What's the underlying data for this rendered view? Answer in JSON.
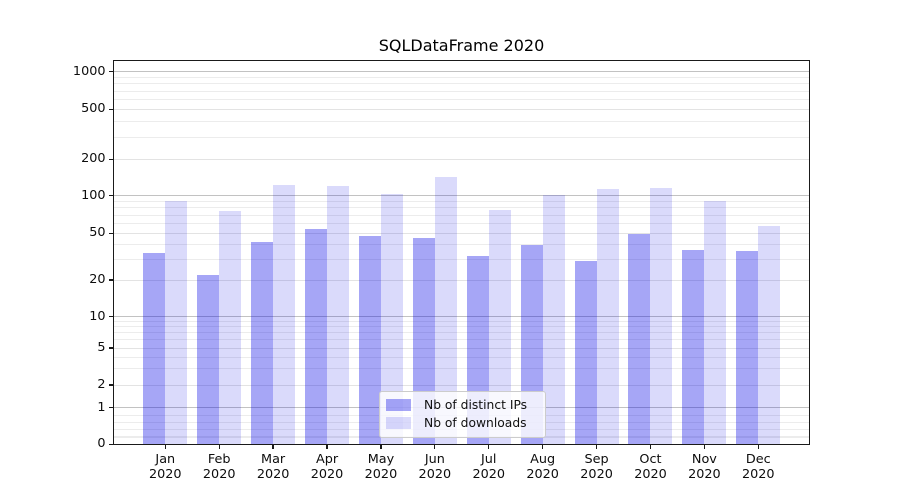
{
  "chart_data": {
    "type": "bar",
    "title": "SQLDataFrame 2020",
    "categories": [
      "Jan",
      "Feb",
      "Mar",
      "Apr",
      "May",
      "Jun",
      "Jul",
      "Aug",
      "Sep",
      "Oct",
      "Nov",
      "Dec"
    ],
    "category_year": "2020",
    "series": [
      {
        "name": "Nb of distinct IPs",
        "color": "rgba(0,0,230,0.35)",
        "color_hex_on_white": "#a6a6f6",
        "values": [
          34,
          22,
          42,
          54,
          47,
          46,
          32,
          40,
          29,
          49,
          36,
          35
        ]
      },
      {
        "name": "Nb of downloads",
        "color": "rgba(0,0,230,0.145)",
        "color_hex_on_white": "#dadafb",
        "values": [
          91,
          76,
          123,
          121,
          104,
          144,
          77,
          101,
          113,
          116,
          90,
          57
        ]
      }
    ],
    "yscale": "symlog",
    "yticks": [
      0,
      1,
      2,
      5,
      10,
      20,
      50,
      100,
      200,
      500,
      1000
    ],
    "ylim": [
      0,
      1250
    ],
    "grid": true,
    "legend_position": "lower center",
    "colors": {
      "major_grid": "#c2c2c2",
      "labeled_minor_grid": "#e3e3e3",
      "minor_grid": "#ececec",
      "spine": "#1a1a1a"
    }
  }
}
